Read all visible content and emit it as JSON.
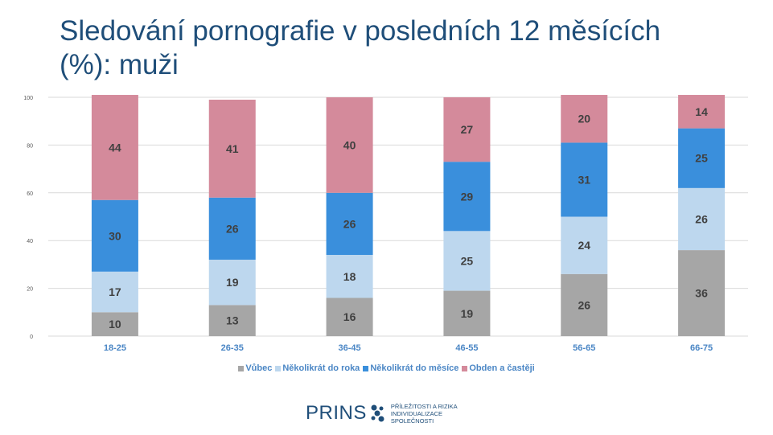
{
  "title": "Sledování pornografie v posledních 12 měsících (%): muži",
  "chart_data": {
    "type": "bar",
    "stacked": true,
    "categories": [
      "18-25",
      "26-35",
      "36-45",
      "46-55",
      "56-65",
      "66-75"
    ],
    "series": [
      {
        "name": "Vůbec",
        "color": "#a6a6a6",
        "values": [
          10,
          13,
          16,
          19,
          26,
          36
        ]
      },
      {
        "name": "Několikrát do roka",
        "color": "#bdd7ee",
        "values": [
          17,
          19,
          18,
          25,
          24,
          26
        ]
      },
      {
        "name": "Několikrát do měsíce",
        "color": "#3a8fdc",
        "values": [
          30,
          26,
          26,
          29,
          31,
          25
        ]
      },
      {
        "name": "Obden a častěji",
        "color": "#d48a9b",
        "values": [
          44,
          41,
          40,
          27,
          20,
          14
        ]
      }
    ],
    "ylim": [
      0,
      100
    ],
    "yticks": [
      0,
      20,
      40,
      60,
      80,
      100
    ],
    "grid": true,
    "legend": "bottom"
  },
  "footer": {
    "logo_text": "PRINS",
    "tagline": "PŘÍLEŽITOSTI A RIZIKA INDIVIDUALIZACE SPOLEČNOSTI"
  }
}
